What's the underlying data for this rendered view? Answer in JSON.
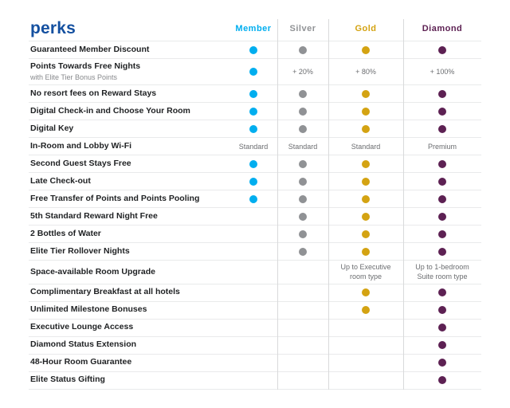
{
  "colors": {
    "title_blue": "#1450a0",
    "member_cyan": "#00aeef",
    "silver_gray": "#909295",
    "gold_yellow": "#d4a312",
    "diamond_purple": "#5d2153",
    "grid_line": "#e9eaeb",
    "column_divider": "#d9dadb"
  },
  "chart_data": {
    "type": "table",
    "title": "perks",
    "columns": [
      {
        "id": "member",
        "label": "Member",
        "color": "#00aeef"
      },
      {
        "id": "silver",
        "label": "Silver",
        "color": "#909295"
      },
      {
        "id": "gold",
        "label": "Gold",
        "color": "#d4a312"
      },
      {
        "id": "diamond",
        "label": "Diamond",
        "color": "#5d2153"
      }
    ],
    "dot_legend": "dot = benefit included for that tier",
    "rows": [
      {
        "label": "Guaranteed Member Discount",
        "cells": [
          "dot",
          "dot",
          "dot",
          "dot"
        ]
      },
      {
        "label": "Points Towards Free Nights",
        "sublabel": "with Elite Tier Bonus Points",
        "cells": [
          "dot",
          "+ 20%",
          "+ 80%",
          "+ 100%"
        ]
      },
      {
        "label": "No resort fees on Reward Stays",
        "cells": [
          "dot",
          "dot",
          "dot",
          "dot"
        ]
      },
      {
        "label": "Digital Check-in and Choose Your Room",
        "cells": [
          "dot",
          "dot",
          "dot",
          "dot"
        ]
      },
      {
        "label": "Digital Key",
        "cells": [
          "dot",
          "dot",
          "dot",
          "dot"
        ]
      },
      {
        "label": "In-Room and Lobby Wi-Fi",
        "cells": [
          "Standard",
          "Standard",
          "Standard",
          "Premium"
        ]
      },
      {
        "label": "Second Guest Stays Free",
        "cells": [
          "dot",
          "dot",
          "dot",
          "dot"
        ]
      },
      {
        "label": "Late Check-out",
        "cells": [
          "dot",
          "dot",
          "dot",
          "dot"
        ]
      },
      {
        "label": "Free Transfer of Points and Points Pooling",
        "cells": [
          "dot",
          "dot",
          "dot",
          "dot"
        ]
      },
      {
        "label": "5th Standard Reward Night Free",
        "cells": [
          "",
          "dot",
          "dot",
          "dot"
        ]
      },
      {
        "label": "2 Bottles of Water",
        "cells": [
          "",
          "dot",
          "dot",
          "dot"
        ]
      },
      {
        "label": "Elite Tier Rollover Nights",
        "cells": [
          "",
          "dot",
          "dot",
          "dot"
        ]
      },
      {
        "label": "Space-available Room Upgrade",
        "cells": [
          "",
          "",
          "Up to Executive room type",
          "Up to 1-bedroom Suite room type"
        ]
      },
      {
        "label": "Complimentary Breakfast at all hotels",
        "cells": [
          "",
          "",
          "dot",
          "dot"
        ]
      },
      {
        "label": "Unlimited Milestone Bonuses",
        "cells": [
          "",
          "",
          "dot",
          "dot"
        ]
      },
      {
        "label": "Executive Lounge Access",
        "cells": [
          "",
          "",
          "",
          "dot"
        ]
      },
      {
        "label": "Diamond Status Extension",
        "cells": [
          "",
          "",
          "",
          "dot"
        ]
      },
      {
        "label": "48-Hour Room Guarantee",
        "cells": [
          "",
          "",
          "",
          "dot"
        ]
      },
      {
        "label": "Elite Status Gifting",
        "cells": [
          "",
          "",
          "",
          "dot"
        ]
      }
    ]
  }
}
